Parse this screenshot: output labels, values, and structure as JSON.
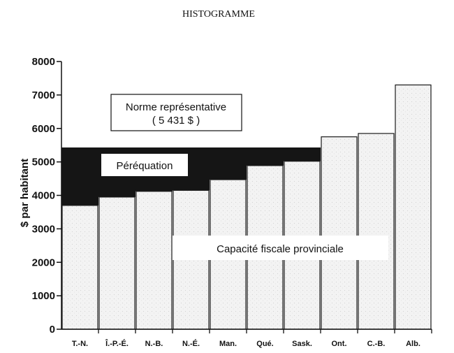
{
  "chart_data": {
    "type": "bar",
    "title": "HISTOGRAMME",
    "ylabel": "$ par habitant",
    "xlabel": "",
    "ylim": [
      0,
      8000
    ],
    "yticks": [
      0,
      1000,
      2000,
      3000,
      4000,
      5000,
      6000,
      7000,
      8000
    ],
    "categories": [
      "T.-N.",
      "Î.-P.-É.",
      "N.-B.",
      "N.-É.",
      "Man.",
      "Qué.",
      "Sask.",
      "Ont.",
      "C.-B.",
      "Alb."
    ],
    "values": [
      3700,
      3950,
      4120,
      4150,
      4470,
      4890,
      5020,
      5750,
      5850,
      7300
    ],
    "standard": 5431,
    "annotations": {
      "standard_line1": "Norme représentative",
      "standard_line2": "( 5 431 $ )",
      "equalization": "Péréquation",
      "capacity": "Capacité fiscale provinciale"
    },
    "colors": {
      "equalization": "#151515",
      "bar_fill": "#f1f1f1",
      "bar_edge": "#1a1a1a"
    }
  }
}
